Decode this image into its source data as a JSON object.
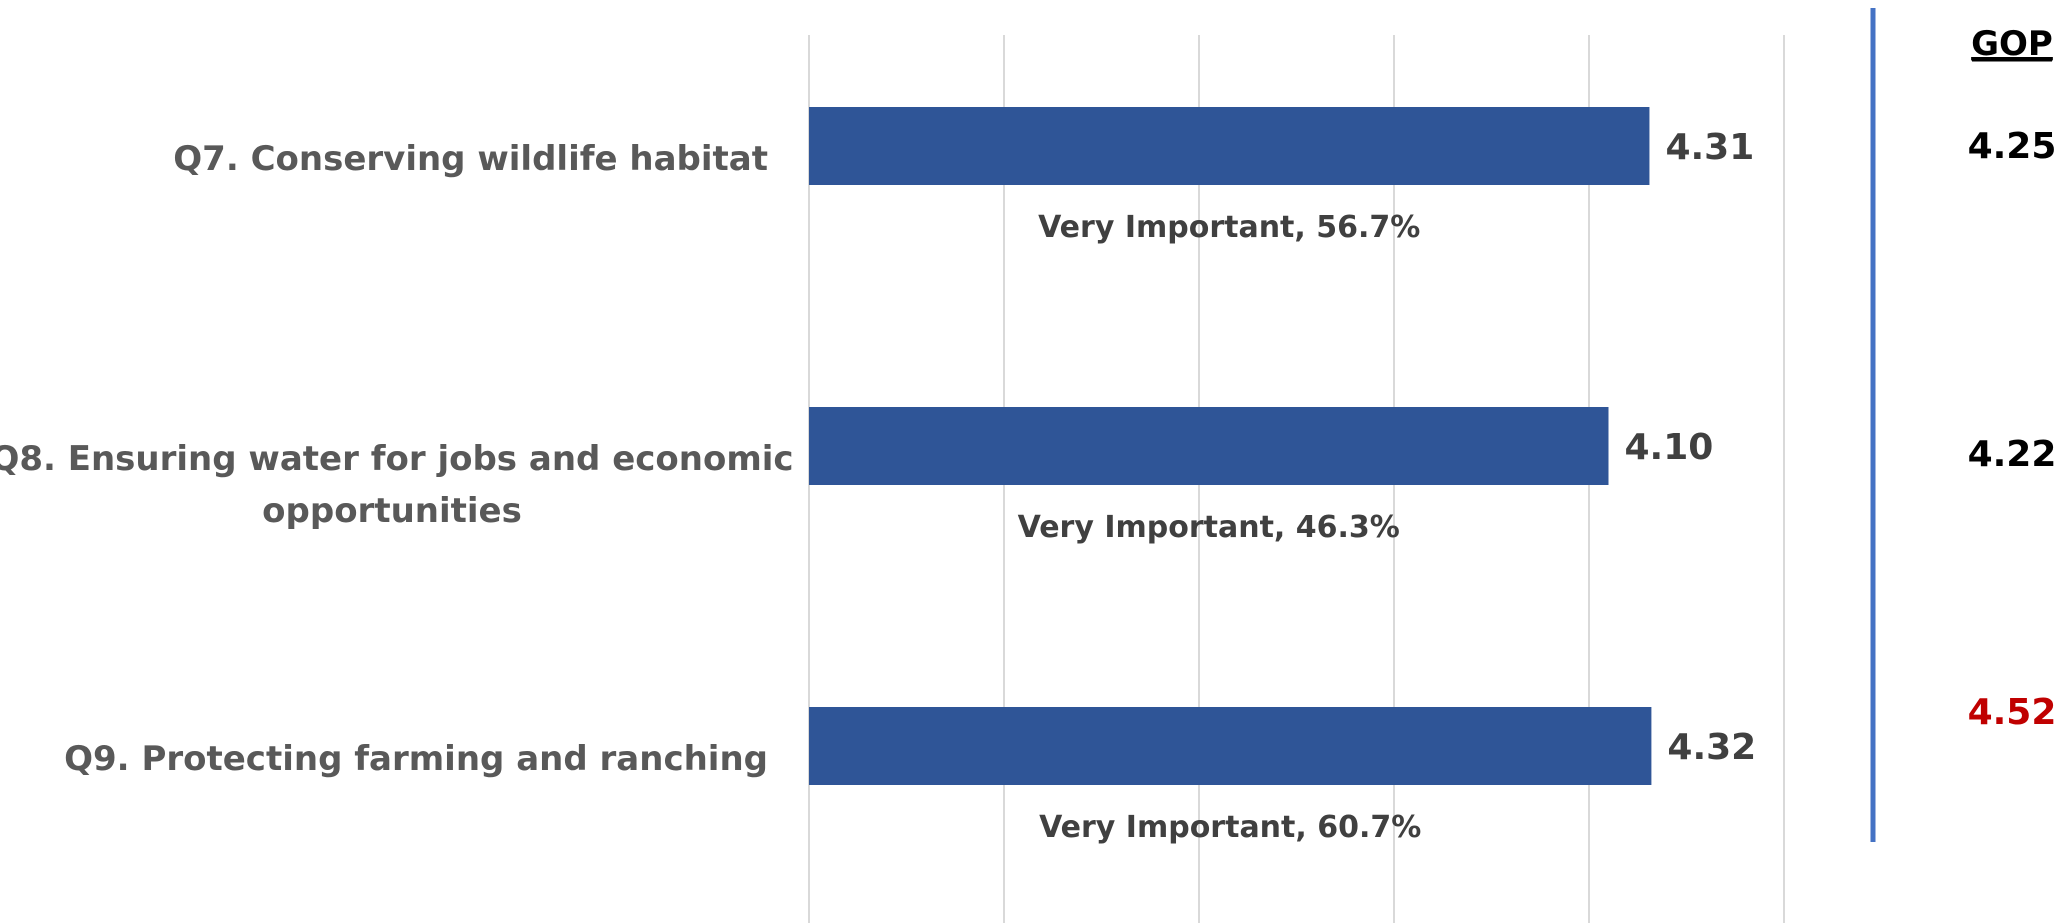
{
  "chart_data": {
    "type": "bar",
    "orientation": "horizontal",
    "categories": [
      [
        "Q7. Conserving wildlife habitat"
      ],
      [
        "Q8. Ensuring water for jobs and  economic",
        "opportunities"
      ],
      [
        "Q9. Protecting farming and ranching"
      ]
    ],
    "values": [
      4.31,
      4.1,
      4.32
    ],
    "value_labels": [
      "4.31",
      "4.10",
      "4.32"
    ],
    "annotations": [
      "Very Important, 56.7%",
      "Very Important, 46.3%",
      "Very Important, 60.7%"
    ],
    "xlim": [
      0,
      5
    ],
    "grid": true,
    "bar_color": "#2F5597",
    "side_column": {
      "header": "GOP",
      "values": [
        "4.25",
        "4.22",
        "4.52"
      ],
      "colors": [
        "#000000",
        "#000000",
        "#C00000"
      ],
      "divider_color": "#4472C4"
    }
  }
}
